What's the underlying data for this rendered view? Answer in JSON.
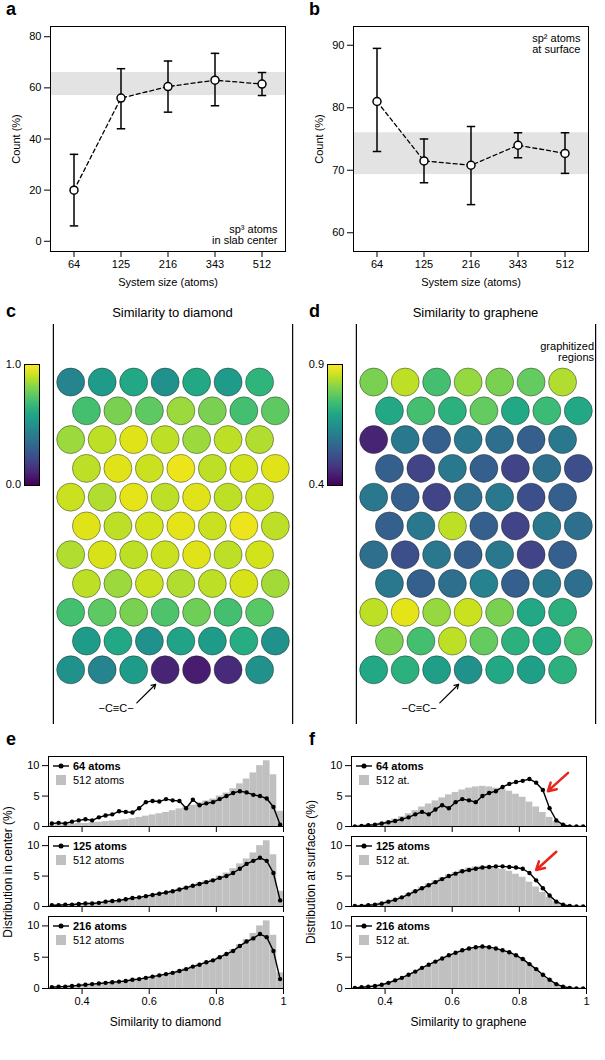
{
  "chart_data": [
    {
      "panel_label": "a",
      "type": "line",
      "line_style": "dashed",
      "marker": "circle",
      "color": "#000000",
      "xlabel": "System size (atoms)",
      "ylabel": "Count (%)",
      "categories": [
        "64",
        "125",
        "216",
        "343",
        "512"
      ],
      "values": [
        20,
        56,
        60.5,
        63,
        61.5
      ],
      "error_bars": [
        [
          6,
          34
        ],
        [
          44,
          67.5
        ],
        [
          50.5,
          70.5
        ],
        [
          53,
          73.5
        ],
        [
          57,
          66
        ]
      ],
      "band": [
        57,
        66
      ],
      "annotation": "sp³ atoms\nin slab center",
      "ylim": [
        -4,
        84
      ],
      "yticks": [
        0,
        20,
        40,
        60,
        80
      ]
    },
    {
      "panel_label": "b",
      "type": "line",
      "line_style": "dashed",
      "marker": "circle",
      "color": "#000000",
      "xlabel": "System size (atoms)",
      "ylabel": "Count (%)",
      "categories": [
        "64",
        "125",
        "216",
        "343",
        "512"
      ],
      "values": [
        81,
        71.5,
        70.8,
        74,
        72.7
      ],
      "error_bars": [
        [
          73,
          89.5
        ],
        [
          68,
          75
        ],
        [
          64.5,
          77
        ],
        [
          72,
          76
        ],
        [
          69.5,
          76
        ]
      ],
      "band": [
        69.3,
        76
      ],
      "annotation": "sp² atoms\nat surface",
      "ylim": [
        57,
        93
      ],
      "yticks": [
        60,
        70,
        80,
        90
      ]
    },
    {
      "panel_label": "c",
      "type": "scatter",
      "title": "Similarity to diamond",
      "colorbar": {
        "range": [
          0,
          1
        ],
        "ticks": [
          {
            "value": 1,
            "label": "1.0"
          },
          {
            "value": 0,
            "label": "0.0"
          }
        ]
      },
      "annotations": [
        "−C≡C−"
      ],
      "atoms": [
        [
          0.45,
          0.55,
          0.6,
          0.5,
          0.6,
          0.55,
          0.65
        ],
        [
          0.7,
          0.8,
          0.75,
          0.85,
          0.8,
          0.7,
          0.75
        ],
        [
          0.85,
          0.9,
          0.95,
          0.9,
          0.85,
          0.9,
          0.88
        ],
        [
          0.9,
          0.95,
          0.92,
          0.97,
          0.9,
          0.93,
          0.95
        ],
        [
          0.92,
          0.88,
          0.96,
          0.9,
          0.95,
          0.9,
          0.92
        ],
        [
          0.95,
          0.9,
          0.93,
          0.96,
          0.92,
          0.97,
          0.9
        ],
        [
          0.88,
          0.94,
          0.9,
          0.92,
          0.95,
          0.9,
          0.93
        ],
        [
          0.9,
          0.85,
          0.92,
          0.88,
          0.9,
          0.94,
          0.86
        ],
        [
          0.7,
          0.75,
          0.8,
          0.72,
          0.78,
          0.7,
          0.74
        ],
        [
          0.55,
          0.6,
          0.5,
          0.58,
          0.55,
          0.62,
          0.5
        ],
        [
          0.5,
          0.45,
          0.55,
          0.1,
          0.08,
          0.12,
          0.5
        ]
      ]
    },
    {
      "panel_label": "d",
      "type": "scatter",
      "title": "Similarity to graphene",
      "colorbar": {
        "range": [
          0.4,
          0.9
        ],
        "ticks": [
          0.9,
          0.4
        ]
      },
      "annotations": [
        "graphitized\nregions",
        "−C≡C−"
      ],
      "atoms": [
        [
          0.8,
          0.85,
          0.75,
          0.82,
          0.8,
          0.78,
          0.84
        ],
        [
          0.7,
          0.75,
          0.72,
          0.78,
          0.7,
          0.74,
          0.7
        ],
        [
          0.45,
          0.6,
          0.55,
          0.6,
          0.58,
          0.55,
          0.6
        ],
        [
          0.55,
          0.5,
          0.6,
          0.55,
          0.5,
          0.58,
          0.52
        ],
        [
          0.6,
          0.55,
          0.5,
          0.58,
          0.6,
          0.52,
          0.55
        ],
        [
          0.55,
          0.6,
          0.85,
          0.55,
          0.5,
          0.6,
          0.58
        ],
        [
          0.58,
          0.52,
          0.6,
          0.55,
          0.6,
          0.5,
          0.55
        ],
        [
          0.6,
          0.55,
          0.58,
          0.62,
          0.55,
          0.6,
          0.58
        ],
        [
          0.85,
          0.88,
          0.82,
          0.86,
          0.8,
          0.7,
          0.72
        ],
        [
          0.8,
          0.75,
          0.85,
          0.78,
          0.72,
          0.7,
          0.75
        ],
        [
          0.7,
          0.72,
          0.68,
          0.65,
          0.7,
          0.68,
          0.72
        ]
      ]
    },
    {
      "panel_label": "e",
      "type": "histogram",
      "xlabel": "Similarity to diamond",
      "ylabel": "Distribution in center (%)",
      "xlim": [
        0.3,
        1
      ],
      "ylim": [
        0,
        11.5
      ],
      "bins": [
        0.3,
        0.32,
        0.34,
        0.36,
        0.38,
        0.4,
        0.42,
        0.44,
        0.46,
        0.48,
        0.5,
        0.52,
        0.54,
        0.56,
        0.58,
        0.6,
        0.62,
        0.64,
        0.66,
        0.68,
        0.7,
        0.72,
        0.74,
        0.76,
        0.78,
        0.8,
        0.82,
        0.84,
        0.86,
        0.88,
        0.9,
        0.92,
        0.94,
        0.96,
        0.98,
        1.0
      ],
      "subplots": [
        {
          "tick_labels": "y",
          "xticks": [
            0.4,
            0.6,
            0.8,
            1
          ],
          "yticks": [
            0,
            5,
            10
          ],
          "series": [
            {
              "name": "64 atoms",
              "type": "line",
              "color": "#000000",
              "values": [
                0.5,
                0.6,
                0.5,
                0.8,
                1.0,
                1.2,
                1.0,
                1.5,
                1.8,
                2.0,
                2.5,
                2.4,
                2.3,
                3.0,
                4.0,
                4.2,
                4.1,
                4.5,
                4.3,
                4.2,
                3.0,
                4.4,
                3.5,
                3.8,
                4.0,
                4.5,
                5.0,
                5.5,
                5.8,
                5.6,
                5.2,
                5.0,
                4.6,
                3.2,
                0.3
              ]
            },
            {
              "name": "512 atoms",
              "type": "bar",
              "color": "#c0c0c0",
              "values": [
                0.2,
                0.3,
                0.3,
                0.4,
                0.5,
                0.5,
                0.6,
                0.7,
                0.8,
                0.9,
                1.0,
                1.1,
                1.3,
                1.5,
                1.7,
                1.9,
                2.1,
                2.3,
                2.6,
                2.9,
                3.2,
                3.5,
                3.9,
                4.2,
                4.5,
                5.0,
                5.5,
                6.2,
                7.0,
                7.8,
                8.8,
                10.0,
                10.8,
                8.5,
                2.5
              ]
            }
          ]
        },
        {
          "tick_labels": "y",
          "xticks": [
            0.4,
            0.6,
            0.8,
            1
          ],
          "yticks": [
            0,
            5,
            10
          ],
          "series": [
            {
              "name": "125 atoms",
              "type": "line",
              "color": "#000000",
              "values": [
                0.2,
                0.2,
                0.3,
                0.3,
                0.4,
                0.5,
                0.5,
                0.6,
                0.8,
                0.9,
                1.0,
                1.2,
                1.4,
                1.5,
                1.7,
                1.9,
                2.1,
                2.3,
                2.5,
                2.8,
                3.1,
                3.4,
                3.7,
                4.0,
                4.3,
                4.7,
                5.0,
                5.5,
                6.2,
                7.0,
                7.5,
                8.0,
                7.5,
                5.5,
                1.0
              ]
            },
            {
              "name": "512 atoms",
              "type": "bar",
              "color": "#c0c0c0",
              "values": [
                0.2,
                0.3,
                0.3,
                0.4,
                0.5,
                0.5,
                0.6,
                0.7,
                0.8,
                0.9,
                1.0,
                1.1,
                1.3,
                1.5,
                1.7,
                1.9,
                2.1,
                2.3,
                2.6,
                2.9,
                3.2,
                3.5,
                3.9,
                4.2,
                4.5,
                5.0,
                5.5,
                6.2,
                7.0,
                7.8,
                8.8,
                10.0,
                10.8,
                8.5,
                2.5
              ]
            }
          ]
        },
        {
          "tick_labels": true,
          "xticks": [
            0.4,
            0.6,
            0.8,
            1
          ],
          "yticks": [
            0,
            5,
            10
          ],
          "series": [
            {
              "name": "216 atoms",
              "type": "line",
              "color": "#000000",
              "values": [
                0.2,
                0.3,
                0.3,
                0.4,
                0.5,
                0.6,
                0.7,
                0.8,
                0.9,
                1.0,
                1.1,
                1.2,
                1.4,
                1.5,
                1.7,
                1.9,
                2.1,
                2.3,
                2.5,
                2.8,
                3.1,
                3.5,
                3.8,
                4.2,
                4.5,
                5.0,
                5.5,
                6.0,
                6.8,
                7.5,
                8.0,
                8.7,
                8.2,
                6.0,
                1.5
              ]
            },
            {
              "name": "512 atoms",
              "type": "bar",
              "color": "#c0c0c0",
              "values": [
                0.2,
                0.3,
                0.3,
                0.4,
                0.5,
                0.5,
                0.6,
                0.7,
                0.8,
                0.9,
                1.0,
                1.1,
                1.3,
                1.5,
                1.7,
                1.9,
                2.1,
                2.3,
                2.6,
                2.9,
                3.2,
                3.5,
                3.9,
                4.2,
                4.5,
                5.0,
                5.5,
                6.2,
                7.0,
                7.8,
                8.8,
                10.0,
                10.8,
                8.5,
                2.5
              ]
            }
          ]
        }
      ]
    },
    {
      "panel_label": "f",
      "type": "histogram",
      "xlabel": "Similarity to graphene",
      "ylabel": "Distribution at surfaces (%)",
      "xlim": [
        0.3,
        1
      ],
      "ylim": [
        0,
        11.5
      ],
      "bins": [
        0.3,
        0.32,
        0.34,
        0.36,
        0.38,
        0.4,
        0.42,
        0.44,
        0.46,
        0.48,
        0.5,
        0.52,
        0.54,
        0.56,
        0.58,
        0.6,
        0.62,
        0.64,
        0.66,
        0.68,
        0.7,
        0.72,
        0.74,
        0.76,
        0.78,
        0.8,
        0.82,
        0.84,
        0.86,
        0.88,
        0.9,
        0.92,
        0.94,
        0.96,
        0.98,
        1.0
      ],
      "subplots": [
        {
          "tick_labels": "y",
          "xticks": [
            0.4,
            0.6,
            0.8,
            1
          ],
          "yticks": [
            0,
            5,
            10
          ],
          "arrow": {
            "x": 0.885,
            "y": 5.8,
            "color": "#e8261c"
          },
          "series": [
            {
              "name": "64 atoms",
              "type": "line",
              "color": "#000000",
              "values": [
                0,
                0.1,
                0.2,
                0.3,
                0.5,
                0.7,
                0.9,
                1.2,
                1.5,
                2.0,
                2.4,
                2.0,
                2.8,
                3.5,
                3.0,
                4.0,
                4.5,
                4.3,
                4.0,
                5.0,
                5.5,
                5.8,
                6.5,
                7.0,
                7.3,
                7.5,
                7.8,
                7.2,
                6.0,
                3.0,
                1.0,
                0.3,
                0,
                0,
                0
              ]
            },
            {
              "name": "512 at.",
              "type": "bar",
              "color": "#c0c0c0",
              "values": [
                0.1,
                0.2,
                0.3,
                0.4,
                0.6,
                0.9,
                1.2,
                1.6,
                2.1,
                2.6,
                3.2,
                3.7,
                4.2,
                4.7,
                5.2,
                5.6,
                6.0,
                6.3,
                6.5,
                6.6,
                6.5,
                6.3,
                6.1,
                5.8,
                5.3,
                4.8,
                4.0,
                3.2,
                2.3,
                1.5,
                0.8,
                0.4,
                0.1,
                0,
                0
              ]
            }
          ]
        },
        {
          "tick_labels": "y",
          "xticks": [
            0.4,
            0.6,
            0.8,
            1
          ],
          "yticks": [
            0,
            5,
            10
          ],
          "arrow": {
            "x": 0.85,
            "y": 6.0,
            "color": "#e8261c"
          },
          "series": [
            {
              "name": "125 atoms",
              "type": "line",
              "color": "#000000",
              "values": [
                0.1,
                0.1,
                0.2,
                0.3,
                0.5,
                0.8,
                1.1,
                1.5,
                2.0,
                2.5,
                3.0,
                3.5,
                4.0,
                4.5,
                5.0,
                5.4,
                5.8,
                6.0,
                6.2,
                6.4,
                6.5,
                6.6,
                6.6,
                6.5,
                6.4,
                6.2,
                5.5,
                4.3,
                3.0,
                1.8,
                0.8,
                0.3,
                0.1,
                0,
                0
              ]
            },
            {
              "name": "512 at.",
              "type": "bar",
              "color": "#c0c0c0",
              "values": [
                0.1,
                0.2,
                0.3,
                0.4,
                0.6,
                0.9,
                1.2,
                1.6,
                2.1,
                2.6,
                3.2,
                3.7,
                4.2,
                4.7,
                5.2,
                5.6,
                6.0,
                6.3,
                6.5,
                6.6,
                6.5,
                6.3,
                6.1,
                5.8,
                5.3,
                4.8,
                4.0,
                3.2,
                2.3,
                1.5,
                0.8,
                0.4,
                0.1,
                0,
                0
              ]
            }
          ]
        },
        {
          "tick_labels": true,
          "xticks": [
            0.4,
            0.6,
            0.8,
            1
          ],
          "yticks": [
            0,
            5,
            10
          ],
          "series": [
            {
              "name": "216 atoms",
              "type": "line",
              "color": "#000000",
              "values": [
                0.1,
                0.2,
                0.3,
                0.4,
                0.6,
                0.9,
                1.3,
                1.7,
                2.2,
                2.7,
                3.3,
                3.8,
                4.3,
                4.8,
                5.3,
                5.7,
                6.1,
                6.4,
                6.6,
                6.7,
                6.6,
                6.4,
                6.1,
                5.8,
                5.3,
                4.7,
                3.9,
                3.1,
                2.2,
                1.4,
                0.7,
                0.3,
                0.1,
                0,
                0
              ]
            },
            {
              "name": "512 at.",
              "type": "bar",
              "color": "#c0c0c0",
              "values": [
                0.1,
                0.2,
                0.3,
                0.4,
                0.6,
                0.9,
                1.2,
                1.6,
                2.1,
                2.6,
                3.2,
                3.7,
                4.2,
                4.7,
                5.2,
                5.6,
                6.0,
                6.3,
                6.5,
                6.6,
                6.5,
                6.3,
                6.1,
                5.8,
                5.3,
                4.8,
                4.0,
                3.2,
                2.3,
                1.5,
                0.8,
                0.4,
                0.1,
                0,
                0
              ]
            }
          ]
        }
      ]
    }
  ]
}
